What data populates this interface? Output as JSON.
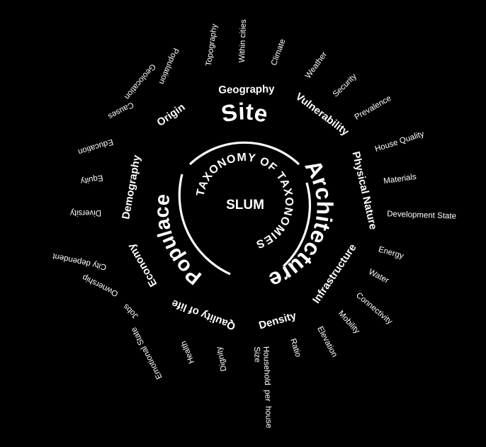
{
  "diagram": {
    "center": "SLUM",
    "ring_text": "TAXONOMY OF TAXONOMIES",
    "main": [
      {
        "id": "site",
        "label": "Site"
      },
      {
        "id": "architecture",
        "label": "Architecture"
      },
      {
        "id": "populace",
        "label": "Populace"
      }
    ],
    "subcategories": [
      {
        "label": "Geography"
      },
      {
        "label": "Vulnerability"
      },
      {
        "label": "Physical Nature"
      },
      {
        "label": "Infrastructure"
      },
      {
        "label": "Density"
      },
      {
        "label": "Qaulity of life"
      },
      {
        "label": "Economy"
      },
      {
        "label": "Demography"
      },
      {
        "label": "Origin"
      }
    ],
    "leaves": [
      {
        "label": "Topography"
      },
      {
        "label": "Within cities"
      },
      {
        "label": "Climate"
      },
      {
        "label": "Weather"
      },
      {
        "label": "Security"
      },
      {
        "label": "Prevalence"
      },
      {
        "label": "House Quality"
      },
      {
        "label": "Materials"
      },
      {
        "label": "Development State"
      },
      {
        "label": "Energy"
      },
      {
        "label": "Water"
      },
      {
        "label": "Connectivity"
      },
      {
        "label": "Mobility"
      },
      {
        "label": "Elevation"
      },
      {
        "label": "Ratio"
      },
      {
        "label": "Household per house Size"
      },
      {
        "label": "Dignity"
      },
      {
        "label": "Health"
      },
      {
        "label": "Emotional State"
      },
      {
        "label": "Jobs"
      },
      {
        "label": "Ownership"
      },
      {
        "label": "City dependent"
      },
      {
        "label": "Diversity"
      },
      {
        "label": "Equity"
      },
      {
        "label": "Education"
      },
      {
        "label": "Causes"
      },
      {
        "label": "Geolocation"
      },
      {
        "label": "Population"
      }
    ]
  }
}
